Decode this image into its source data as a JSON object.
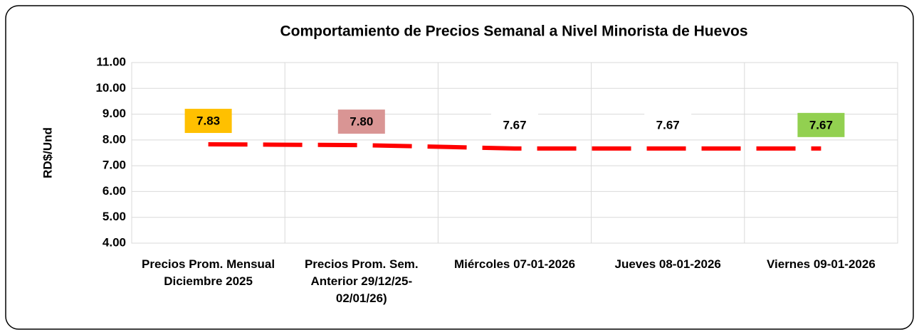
{
  "chart_data": {
    "type": "line",
    "title": "Comportamiento de Precios Semanal a Nivel Minorista de Huevos",
    "y_label": "RD$/Und",
    "categories": [
      "Precios Prom. Mensual Diciembre 2025",
      "Precios Prom. Sem. Anterior  29/12/25-02/01/26)",
      "Miércoles 07-01-2026",
      "Jueves 08-01-2026",
      "Viernes 09-01-2026"
    ],
    "series": [
      {
        "name": "Precio",
        "color": "#ff0000",
        "values": [
          7.83,
          7.8,
          7.67,
          7.67,
          7.67
        ],
        "value_labels": [
          "7.83",
          "7.80",
          "7.67",
          "7.67",
          "7.67"
        ],
        "label_colors": [
          "#ffc000",
          "#d99594",
          "#ffffff",
          "#ffffff",
          "#92d050"
        ]
      }
    ],
    "ylim": [
      4,
      11
    ],
    "yticks": [
      {
        "value": 4,
        "label": "4.00"
      },
      {
        "value": 5,
        "label": "5.00"
      },
      {
        "value": 6,
        "label": "6.00"
      },
      {
        "value": 7,
        "label": "7.00"
      },
      {
        "value": 8,
        "label": "8.00"
      },
      {
        "value": 9,
        "label": "9.00"
      },
      {
        "value": 10,
        "label": "10.00"
      },
      {
        "value": 11,
        "label": "11.00"
      }
    ],
    "grid": true
  }
}
